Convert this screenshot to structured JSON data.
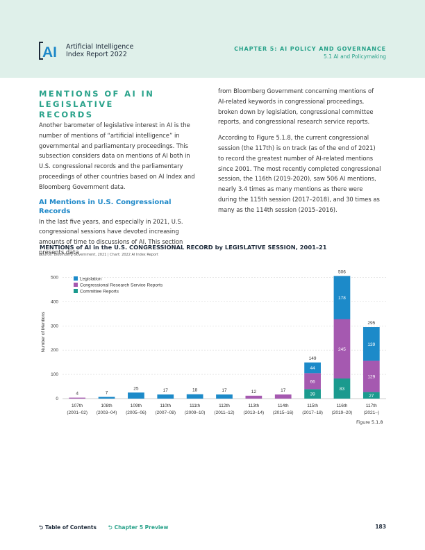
{
  "header": {
    "logo_letters": "AI",
    "report_line1": "Artificial Intelligence",
    "report_line2": "Index Report 2022",
    "chapter": "CHAPTER 5: AI POLICY AND GOVERNANCE",
    "section": "5.1 AI and Policymaking"
  },
  "body": {
    "heading_line1": "MENTIONS OF AI IN LEGISLATIVE",
    "heading_line2": "RECORDS",
    "intro_paragraph": "Another barometer of legislative interest in AI is the number of mentions of “artificial intelligence” in governmental and parliamentary proceedings. This subsection considers data on mentions of AI both in U.S. congressional records and the parliamentary proceedings of other countries based on AI Index and Bloomberg Government data.",
    "subheading": "AI Mentions in U.S. Congressional Records",
    "paragraph2": "In the last five years, and especially in 2021, U.S. congressional sessions have devoted increasing amounts of time to discussions of AI. This section presents data",
    "paragraph3": "from Bloomberg Government concerning mentions of AI-related keywords in congressional proceedings, broken down by legislation, congressional committee reports, and congressional research service reports.",
    "paragraph4": "According to Figure 5.1.8, the current congressional session (the 117th) is on track (as of the end of 2021) to record the greatest number of AI-related mentions since 2001. The most recently completed congressional session, the 116th (2019-2020), saw 506 AI mentions, nearly 3.4 times as many mentions as there were during the 115th session (2017–2018), and 30 times as many as the 114th session (2015–2016)."
  },
  "chart_data": {
    "type": "bar",
    "stacked": true,
    "title": "MENTIONS of AI in the U.S. CONGRESSIONAL RECORD by LEGISLATIVE SESSION, 2001–21",
    "source": "Source: Bloomberg Government, 2021 | Chart: 2022 AI Index Report",
    "ylabel": "Number of Mentions",
    "ylim": [
      0,
      550
    ],
    "yticks": [
      0,
      100,
      200,
      300,
      400,
      500
    ],
    "grid": true,
    "legend_position": "top-left",
    "categories": [
      "107th",
      "108th",
      "109th",
      "110th",
      "111th",
      "112th",
      "113th",
      "114th",
      "115th",
      "116th",
      "117th"
    ],
    "category_years": [
      "(2001–02)",
      "(2003–04)",
      "(2005–06)",
      "(2007–08)",
      "(2009–10)",
      "(2011–12)",
      "(2013–14)",
      "(2015–16)",
      "(2017–18)",
      "(2019–20)",
      "(2021–)"
    ],
    "totals": [
      4,
      7,
      25,
      17,
      18,
      17,
      12,
      17,
      149,
      506,
      295
    ],
    "series": [
      {
        "name": "Committee Reports",
        "color": "#1a9a8e",
        "values": [
          0,
          0,
          0,
          0,
          0,
          0,
          0,
          0,
          39,
          83,
          27
        ],
        "labels": [
          null,
          null,
          null,
          null,
          null,
          null,
          null,
          null,
          "39",
          "83",
          "27"
        ]
      },
      {
        "name": "Congressional Research Service Reports",
        "color": "#a559b0",
        "values": [
          4,
          0,
          0,
          0,
          0,
          0,
          12,
          17,
          66,
          245,
          129
        ],
        "labels": [
          null,
          null,
          null,
          null,
          null,
          null,
          null,
          null,
          "66",
          "245",
          "129"
        ]
      },
      {
        "name": "Legislation",
        "color": "#1c8ac9",
        "values": [
          0,
          7,
          25,
          17,
          18,
          17,
          0,
          0,
          44,
          178,
          139
        ],
        "labels": [
          null,
          null,
          null,
          null,
          null,
          null,
          null,
          null,
          "44",
          "178",
          "139"
        ]
      }
    ],
    "legend_order": [
      "Legislation",
      "Congressional Research Service Reports",
      "Committee Reports"
    ]
  },
  "figure_label": "Figure 5.1.8",
  "footer": {
    "toc": "Table of Contents",
    "preview": "Chapter 5 Preview",
    "page_number": "183"
  }
}
